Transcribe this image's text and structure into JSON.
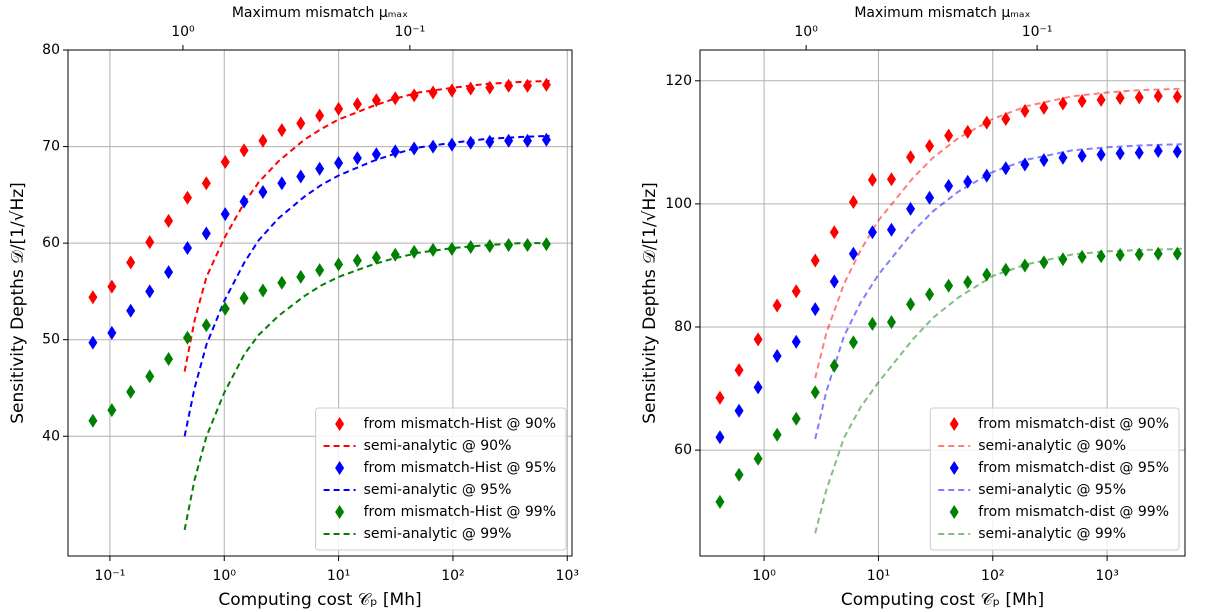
{
  "chart_data": [
    {
      "type": "line",
      "xscale": "log",
      "x2scale": "log",
      "grid": true,
      "legend": "lower right",
      "xlabel": "Computing cost 𝒞ₚ [Mh]",
      "ylabel": "Sensitivity Depths 𝒟/[1/√Hz]",
      "x2label": "Maximum mismatch μₘₐₓ",
      "xlim": [
        0.043,
        1100
      ],
      "ylim": [
        27.6,
        80
      ],
      "x2lim": [
        3.21,
        0.0193
      ],
      "xticks": [
        {
          "value": 0.1,
          "label": "10⁻¹"
        },
        {
          "value": 1,
          "label": "10⁰"
        },
        {
          "value": 10,
          "label": "10¹"
        },
        {
          "value": 100,
          "label": "10²"
        },
        {
          "value": 1000,
          "label": "10³"
        }
      ],
      "yticks": [
        40,
        50,
        60,
        70,
        80
      ],
      "x2ticks": [
        {
          "value": 1,
          "label": "10⁰"
        },
        {
          "value": 0.1,
          "label": "10⁻¹"
        }
      ],
      "series": [
        {
          "name": "from mismatch-Hist @ 90%",
          "style": "marker",
          "color": "#ff0000",
          "x": [
            0.071,
            0.104,
            0.152,
            0.223,
            0.326,
            0.477,
            0.697,
            1.02,
            1.49,
            2.18,
            3.19,
            4.67,
            6.83,
            10.0,
            14.6,
            21.4,
            31.3,
            45.8,
            67,
            98,
            143,
            210,
            307,
            449,
            657
          ],
          "values": [
            54.4,
            55.5,
            58,
            60.1,
            62.3,
            64.7,
            66.2,
            68.4,
            69.6,
            70.6,
            71.7,
            72.4,
            73.2,
            73.9,
            74.4,
            74.8,
            75.0,
            75.3,
            75.6,
            75.8,
            76.0,
            76.1,
            76.3,
            76.3,
            76.4
          ]
        },
        {
          "name": "semi-analytic @ 90%",
          "style": "dashed",
          "color": "#ff0000",
          "x": [
            0.45,
            0.55,
            0.7,
            1,
            1.5,
            2,
            3,
            5,
            7,
            10,
            20,
            30,
            50,
            100,
            200,
            400,
            700
          ],
          "values": [
            46.7,
            52,
            56.5,
            60.5,
            64.2,
            66.3,
            68.5,
            70.7,
            71.8,
            72.8,
            74.2,
            74.9,
            75.6,
            76.1,
            76.5,
            76.7,
            76.8
          ]
        },
        {
          "name": "from mismatch-Hist @ 95%",
          "style": "marker",
          "color": "#0000ff",
          "x": [
            0.071,
            0.104,
            0.152,
            0.223,
            0.326,
            0.477,
            0.697,
            1.02,
            1.49,
            2.18,
            3.19,
            4.67,
            6.83,
            10.0,
            14.6,
            21.4,
            31.3,
            45.8,
            67,
            98,
            143,
            210,
            307,
            449,
            657
          ],
          "values": [
            49.7,
            50.7,
            53,
            55,
            57,
            59.5,
            61,
            63,
            64.3,
            65.3,
            66.2,
            66.9,
            67.7,
            68.3,
            68.8,
            69.2,
            69.5,
            69.8,
            70.0,
            70.2,
            70.4,
            70.5,
            70.6,
            70.6,
            70.7
          ]
        },
        {
          "name": "semi-analytic @ 95%",
          "style": "dashed",
          "color": "#0000ff",
          "x": [
            0.45,
            0.55,
            0.7,
            1,
            1.5,
            2,
            3,
            5,
            7,
            10,
            20,
            30,
            50,
            100,
            200,
            400,
            700
          ],
          "values": [
            40.0,
            45,
            49.5,
            54,
            58,
            60.3,
            62.6,
            64.8,
            66,
            67,
            68.5,
            69.2,
            69.9,
            70.4,
            70.8,
            71.0,
            71.1
          ]
        },
        {
          "name": "from mismatch-Hist @ 99%",
          "style": "marker",
          "color": "#008000",
          "x": [
            0.071,
            0.104,
            0.152,
            0.223,
            0.326,
            0.477,
            0.697,
            1.02,
            1.49,
            2.18,
            3.19,
            4.67,
            6.83,
            10.0,
            14.6,
            21.4,
            31.3,
            45.8,
            67,
            98,
            143,
            210,
            307,
            449,
            657
          ],
          "values": [
            41.6,
            42.7,
            44.6,
            46.2,
            48,
            50.2,
            51.5,
            53.2,
            54.3,
            55.1,
            55.9,
            56.5,
            57.2,
            57.8,
            58.2,
            58.5,
            58.8,
            59.1,
            59.3,
            59.4,
            59.6,
            59.7,
            59.8,
            59.8,
            59.9
          ]
        },
        {
          "name": "semi-analytic @ 99%",
          "style": "dashed",
          "color": "#008000",
          "x": [
            0.45,
            0.55,
            0.7,
            1,
            1.5,
            2,
            3,
            5,
            7,
            10,
            20,
            30,
            50,
            100,
            200,
            400,
            700
          ],
          "values": [
            30.3,
            35.5,
            40,
            44.5,
            48.5,
            50.5,
            52.5,
            54.5,
            55.6,
            56.5,
            57.8,
            58.4,
            59.0,
            59.5,
            59.8,
            60.0,
            60.0
          ]
        }
      ]
    },
    {
      "type": "line",
      "xscale": "log",
      "x2scale": "log",
      "grid": true,
      "legend": "lower right",
      "xlabel": "Computing cost 𝒞ₚ [Mh]",
      "ylabel": "Sensitivity Depths 𝒟/[1/√Hz]",
      "x2label": "Maximum mismatch μₘₐₓ",
      "xlim": [
        0.275,
        4800
      ],
      "ylim": [
        42.8,
        125
      ],
      "x2lim": [
        2.88,
        0.0229
      ],
      "xticks": [
        {
          "value": 1,
          "label": "10⁰"
        },
        {
          "value": 10,
          "label": "10¹"
        },
        {
          "value": 100,
          "label": "10²"
        },
        {
          "value": 1000,
          "label": "10³"
        }
      ],
      "yticks": [
        60,
        80,
        100,
        120
      ],
      "x2ticks": [
        {
          "value": 1,
          "label": "10⁰"
        },
        {
          "value": 0.1,
          "label": "10⁻¹"
        }
      ],
      "series": [
        {
          "name": "from mismatch-dist @ 90%",
          "style": "marker",
          "color": "#ff0000",
          "x": [
            0.411,
            0.604,
            0.886,
            1.3,
            1.91,
            2.8,
            4.11,
            6.04,
            8.86,
            13.0,
            19.1,
            28.0,
            41.1,
            60.4,
            88.6,
            130,
            191,
            280,
            411,
            604,
            886,
            1300,
            1910,
            2800,
            4110
          ],
          "values": [
            68.5,
            73,
            78,
            83.5,
            85.8,
            90.8,
            95.4,
            100.3,
            103.9,
            104.0,
            107.6,
            109.4,
            111.1,
            111.7,
            113.2,
            113.8,
            115.1,
            115.6,
            116.3,
            116.7,
            116.9,
            117.2,
            117.3,
            117.5,
            117.4
          ]
        },
        {
          "name": "semi-analytic @ 90%",
          "style": "dashed",
          "color": "#ff0000",
          "opacity": 0.5,
          "x": [
            2.8,
            3.5,
            5,
            7,
            10,
            20,
            30,
            50,
            100,
            200,
            500,
            1000,
            2000,
            4500
          ],
          "values": [
            71.7,
            79,
            87,
            92.5,
            97.3,
            104.2,
            107.5,
            110.7,
            113.8,
            115.9,
            117.5,
            118.1,
            118.5,
            118.7
          ]
        },
        {
          "name": "from mismatch-dist @ 95%",
          "style": "marker",
          "color": "#0000ff",
          "x": [
            0.411,
            0.604,
            0.886,
            1.3,
            1.91,
            2.8,
            4.11,
            6.04,
            8.86,
            13.0,
            19.1,
            28.0,
            41.1,
            60.4,
            88.6,
            130,
            191,
            280,
            411,
            604,
            886,
            1300,
            1910,
            2800,
            4110
          ],
          "values": [
            62.1,
            66.4,
            70.2,
            75.3,
            77.6,
            82.9,
            87.4,
            91.9,
            95.4,
            95.8,
            99.2,
            101.0,
            102.9,
            103.6,
            104.6,
            105.8,
            106.4,
            107.1,
            107.5,
            107.8,
            108.0,
            108.2,
            108.3,
            108.6,
            108.5
          ]
        },
        {
          "name": "semi-analytic @ 95%",
          "style": "dashed",
          "color": "#0000ff",
          "opacity": 0.5,
          "x": [
            2.8,
            3.5,
            5,
            7,
            10,
            20,
            30,
            50,
            100,
            200,
            500,
            1000,
            2000,
            4500
          ],
          "values": [
            61.8,
            69.5,
            78.5,
            84,
            88.5,
            95.5,
            98.8,
            102,
            105.2,
            107.2,
            108.7,
            109.2,
            109.5,
            109.7
          ]
        },
        {
          "name": "from mismatch-dist @ 99%",
          "style": "marker",
          "color": "#008000",
          "x": [
            0.411,
            0.604,
            0.886,
            1.3,
            1.91,
            2.8,
            4.11,
            6.04,
            8.86,
            13.0,
            19.1,
            28.0,
            41.1,
            60.4,
            88.6,
            130,
            191,
            280,
            411,
            604,
            886,
            1300,
            1910,
            2800,
            4110
          ],
          "values": [
            51.6,
            56,
            58.6,
            62.5,
            65.1,
            69.4,
            73.7,
            77.5,
            80.5,
            80.8,
            83.7,
            85.3,
            86.7,
            87.3,
            88.5,
            89.3,
            90.0,
            90.5,
            91.0,
            91.4,
            91.5,
            91.7,
            91.8,
            91.9,
            91.9
          ]
        },
        {
          "name": "semi-analytic @ 99%",
          "style": "dashed",
          "color": "#008000",
          "opacity": 0.5,
          "x": [
            2.8,
            3.5,
            5,
            7,
            10,
            20,
            30,
            50,
            100,
            200,
            500,
            1000,
            2000,
            4500
          ],
          "values": [
            46.5,
            53.5,
            62,
            67,
            71,
            78,
            81.5,
            84.8,
            88.3,
            90.2,
            91.8,
            92.3,
            92.5,
            92.7
          ]
        }
      ]
    }
  ]
}
